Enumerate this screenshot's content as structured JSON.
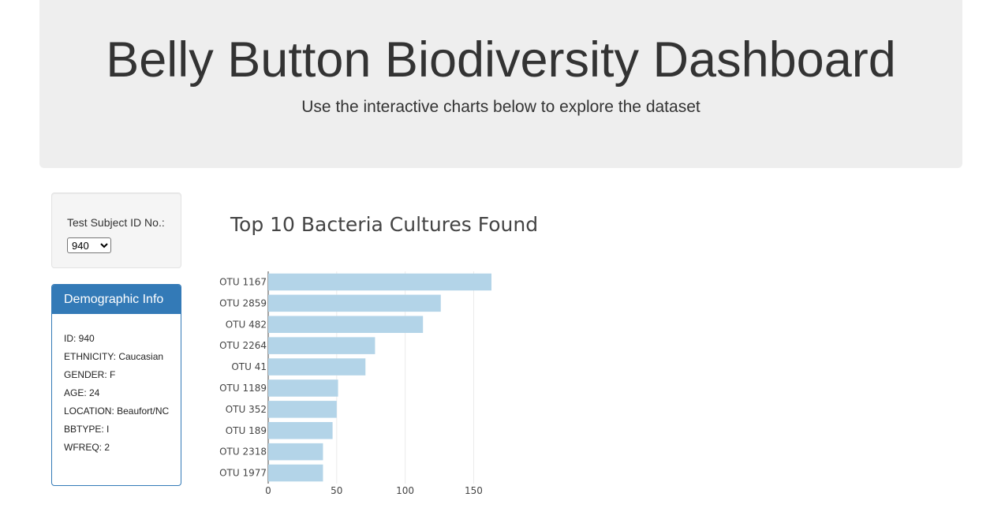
{
  "header": {
    "title": "Belly Button Biodiversity Dashboard",
    "subtitle": "Use the interactive charts below to explore the dataset"
  },
  "selector": {
    "label": "Test Subject ID No.:",
    "selected": "940",
    "options": [
      "940"
    ]
  },
  "demographics": {
    "title": "Demographic Info",
    "rows": [
      "ID: 940",
      "ETHNICITY: Caucasian",
      "GENDER: F",
      "AGE: 24",
      "LOCATION: Beaufort/NC",
      "BBTYPE: I",
      "WFREQ: 2"
    ]
  },
  "colors": {
    "panel_primary": "#337ab7",
    "bar_fill": "#b3d4e8"
  },
  "chart_data": {
    "type": "bar",
    "orientation": "horizontal",
    "title": "Top 10 Bacteria Cultures Found",
    "categories": [
      "OTU 1167",
      "OTU 2859",
      "OTU 482",
      "OTU 2264",
      "OTU 41",
      "OTU 1189",
      "OTU 352",
      "OTU 189",
      "OTU 2318",
      "OTU 1977"
    ],
    "values": [
      163,
      126,
      113,
      78,
      71,
      51,
      50,
      47,
      40,
      40
    ],
    "xlim": [
      0,
      163
    ],
    "xticks": [
      0,
      50,
      100,
      150
    ],
    "grid": true,
    "xlabel": "",
    "ylabel": ""
  }
}
